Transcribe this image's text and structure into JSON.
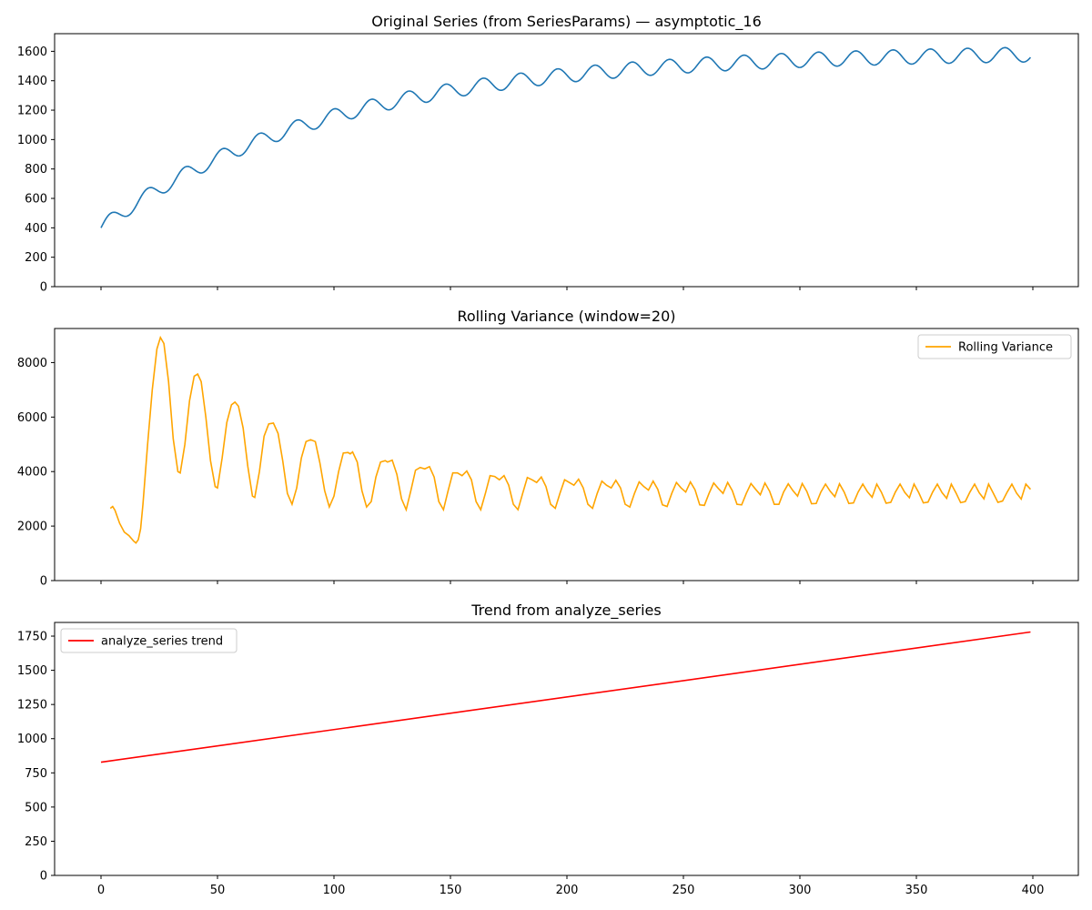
{
  "chart_data": [
    {
      "type": "line",
      "title": "Original Series (from SeriesParams) — asymptotic_16",
      "xlabel": "",
      "ylabel": "",
      "xlim": [
        0,
        400
      ],
      "ylim": [
        0,
        1720
      ],
      "yticks": [
        0,
        200,
        400,
        600,
        800,
        1000,
        1200,
        1400,
        1600
      ],
      "xticks": [
        0,
        50,
        100,
        150,
        200,
        250,
        300,
        350,
        400
      ],
      "x_tick_labels_visible": false,
      "grid": false,
      "legend": null,
      "series": [
        {
          "color": "#1f77b4",
          "x_range": [
            0,
            399
          ],
          "generator": {
            "kind": "asymptotic_sinusoid",
            "base_start": 400,
            "asymptote": 1600,
            "decay_rate": 0.01,
            "amplitude": 50,
            "period": 16,
            "phase": 0
          },
          "sample_points": [
            [
              0,
              400
            ],
            [
              5,
              528
            ],
            [
              11,
              455
            ],
            [
              21,
              700
            ],
            [
              27,
              615
            ],
            [
              37,
              845
            ],
            [
              43,
              750
            ],
            [
              53,
              965
            ],
            [
              59,
              862
            ],
            [
              69,
              1075
            ],
            [
              75,
              960
            ],
            [
              85,
              1160
            ],
            [
              91,
              1045
            ],
            [
              101,
              1240
            ],
            [
              107,
              1115
            ],
            [
              117,
              1300
            ],
            [
              123,
              1175
            ],
            [
              133,
              1360
            ],
            [
              139,
              1225
            ],
            [
              149,
              1405
            ],
            [
              155,
              1270
            ],
            [
              165,
              1445
            ],
            [
              171,
              1305
            ],
            [
              181,
              1480
            ],
            [
              187,
              1340
            ],
            [
              197,
              1510
            ],
            [
              203,
              1368
            ],
            [
              213,
              1535
            ],
            [
              219,
              1390
            ],
            [
              229,
              1555
            ],
            [
              235,
              1410
            ],
            [
              245,
              1575
            ],
            [
              251,
              1428
            ],
            [
              261,
              1592
            ],
            [
              267,
              1445
            ],
            [
              277,
              1605
            ],
            [
              283,
              1458
            ],
            [
              293,
              1617
            ],
            [
              299,
              1468
            ],
            [
              309,
              1627
            ],
            [
              315,
              1478
            ],
            [
              325,
              1633
            ],
            [
              331,
              1486
            ],
            [
              341,
              1640
            ],
            [
              347,
              1490
            ],
            [
              357,
              1645
            ],
            [
              363,
              1495
            ],
            [
              373,
              1650
            ],
            [
              379,
              1500
            ],
            [
              389,
              1655
            ],
            [
              395,
              1502
            ],
            [
              399,
              1545
            ]
          ]
        }
      ]
    },
    {
      "type": "line",
      "title": "Rolling Variance (window=20)",
      "xlabel": "",
      "ylabel": "",
      "xlim": [
        0,
        400
      ],
      "ylim": [
        0,
        9250
      ],
      "yticks": [
        0,
        2000,
        4000,
        6000,
        8000
      ],
      "xticks": [
        0,
        50,
        100,
        150,
        200,
        250,
        300,
        350,
        400
      ],
      "x_tick_labels_visible": false,
      "grid": false,
      "legend": "top-right",
      "series": [
        {
          "name": "Rolling Variance",
          "color": "#ffa500",
          "points": [
            [
              4,
              2650
            ],
            [
              5,
              2720
            ],
            [
              6,
              2580
            ],
            [
              8,
              2100
            ],
            [
              10,
              1780
            ],
            [
              12,
              1650
            ],
            [
              14,
              1450
            ],
            [
              15,
              1380
            ],
            [
              16,
              1500
            ],
            [
              17,
              1900
            ],
            [
              18,
              2800
            ],
            [
              20,
              5000
            ],
            [
              22,
              7000
            ],
            [
              24,
              8500
            ],
            [
              25.5,
              8920
            ],
            [
              27,
              8700
            ],
            [
              29,
              7300
            ],
            [
              31,
              5200
            ],
            [
              33,
              4000
            ],
            [
              34,
              3950
            ],
            [
              36,
              5000
            ],
            [
              38,
              6600
            ],
            [
              40,
              7500
            ],
            [
              41.5,
              7580
            ],
            [
              43,
              7300
            ],
            [
              45,
              6000
            ],
            [
              47,
              4400
            ],
            [
              49,
              3450
            ],
            [
              50,
              3400
            ],
            [
              52,
              4500
            ],
            [
              54,
              5800
            ],
            [
              56,
              6450
            ],
            [
              57.5,
              6550
            ],
            [
              59,
              6400
            ],
            [
              61,
              5600
            ],
            [
              63,
              4200
            ],
            [
              65,
              3100
            ],
            [
              66,
              3050
            ],
            [
              68,
              4000
            ],
            [
              70,
              5300
            ],
            [
              72,
              5750
            ],
            [
              74,
              5780
            ],
            [
              76,
              5400
            ],
            [
              78,
              4400
            ],
            [
              80,
              3200
            ],
            [
              82,
              2800
            ],
            [
              84,
              3400
            ],
            [
              86,
              4500
            ],
            [
              88,
              5100
            ],
            [
              90,
              5170
            ],
            [
              92,
              5100
            ],
            [
              94,
              4300
            ],
            [
              96,
              3300
            ],
            [
              98,
              2700
            ],
            [
              100,
              3100
            ],
            [
              102,
              4000
            ],
            [
              104,
              4680
            ],
            [
              106,
              4700
            ],
            [
              107,
              4650
            ],
            [
              108,
              4720
            ],
            [
              110,
              4350
            ],
            [
              112,
              3300
            ],
            [
              114,
              2700
            ],
            [
              116,
              2900
            ],
            [
              118,
              3800
            ],
            [
              120,
              4350
            ],
            [
              122,
              4400
            ],
            [
              123,
              4350
            ],
            [
              125,
              4420
            ],
            [
              127,
              3900
            ],
            [
              129,
              3000
            ],
            [
              131,
              2600
            ],
            [
              133,
              3300
            ],
            [
              135,
              4050
            ],
            [
              137,
              4150
            ],
            [
              139,
              4100
            ],
            [
              141,
              4180
            ],
            [
              143,
              3800
            ],
            [
              145,
              2900
            ],
            [
              147,
              2600
            ],
            [
              149,
              3300
            ],
            [
              151,
              3950
            ],
            [
              153,
              3950
            ],
            [
              155,
              3850
            ],
            [
              157,
              4020
            ],
            [
              159,
              3700
            ],
            [
              161,
              2900
            ],
            [
              163,
              2600
            ],
            [
              165,
              3200
            ],
            [
              167,
              3850
            ],
            [
              169,
              3820
            ],
            [
              171,
              3700
            ],
            [
              173,
              3850
            ],
            [
              175,
              3500
            ],
            [
              177,
              2800
            ],
            [
              179,
              2600
            ],
            [
              181,
              3200
            ],
            [
              183,
              3780
            ],
            [
              185,
              3700
            ],
            [
              187,
              3600
            ],
            [
              189,
              3800
            ],
            [
              191,
              3450
            ],
            [
              193,
              2800
            ],
            [
              195,
              2650
            ],
            [
              197,
              3200
            ],
            [
              199,
              3700
            ],
            [
              201,
              3600
            ],
            [
              203,
              3500
            ],
            [
              205,
              3720
            ],
            [
              207,
              3400
            ],
            [
              209,
              2800
            ],
            [
              211,
              2650
            ],
            [
              213,
              3200
            ],
            [
              215,
              3650
            ],
            [
              217,
              3500
            ],
            [
              219,
              3400
            ],
            [
              221,
              3680
            ],
            [
              223,
              3400
            ],
            [
              225,
              2800
            ],
            [
              227,
              2700
            ],
            [
              229,
              3200
            ],
            [
              231,
              3620
            ],
            [
              233,
              3450
            ],
            [
              235,
              3320
            ],
            [
              237,
              3650
            ],
            [
              239,
              3350
            ],
            [
              241,
              2780
            ],
            [
              243,
              2720
            ],
            [
              245,
              3200
            ],
            [
              247,
              3600
            ],
            [
              249,
              3400
            ],
            [
              251,
              3250
            ],
            [
              253,
              3620
            ],
            [
              255,
              3330
            ],
            [
              257,
              2780
            ],
            [
              259,
              2760
            ],
            [
              261,
              3200
            ],
            [
              263,
              3580
            ],
            [
              265,
              3380
            ],
            [
              267,
              3200
            ],
            [
              269,
              3600
            ],
            [
              271,
              3300
            ],
            [
              273,
              2800
            ],
            [
              275,
              2780
            ],
            [
              277,
              3200
            ],
            [
              279,
              3560
            ],
            [
              281,
              3350
            ],
            [
              283,
              3150
            ],
            [
              285,
              3580
            ],
            [
              287,
              3280
            ],
            [
              289,
              2800
            ],
            [
              291,
              2800
            ],
            [
              293,
              3250
            ],
            [
              295,
              3550
            ],
            [
              297,
              3300
            ],
            [
              299,
              3100
            ],
            [
              301,
              3560
            ],
            [
              303,
              3270
            ],
            [
              305,
              2820
            ],
            [
              307,
              2830
            ],
            [
              309,
              3250
            ],
            [
              311,
              3540
            ],
            [
              313,
              3280
            ],
            [
              315,
              3080
            ],
            [
              317,
              3550
            ],
            [
              319,
              3250
            ],
            [
              321,
              2830
            ],
            [
              323,
              2850
            ],
            [
              325,
              3250
            ],
            [
              327,
              3540
            ],
            [
              329,
              3260
            ],
            [
              331,
              3060
            ],
            [
              333,
              3540
            ],
            [
              335,
              3240
            ],
            [
              337,
              2840
            ],
            [
              339,
              2870
            ],
            [
              341,
              3250
            ],
            [
              343,
              3540
            ],
            [
              345,
              3240
            ],
            [
              347,
              3040
            ],
            [
              349,
              3540
            ],
            [
              351,
              3230
            ],
            [
              353,
              2850
            ],
            [
              355,
              2880
            ],
            [
              357,
              3250
            ],
            [
              359,
              3540
            ],
            [
              361,
              3230
            ],
            [
              363,
              3020
            ],
            [
              365,
              3540
            ],
            [
              367,
              3220
            ],
            [
              369,
              2860
            ],
            [
              371,
              2900
            ],
            [
              373,
              3250
            ],
            [
              375,
              3540
            ],
            [
              377,
              3220
            ],
            [
              379,
              3000
            ],
            [
              381,
              3540
            ],
            [
              383,
              3210
            ],
            [
              385,
              2870
            ],
            [
              387,
              2920
            ],
            [
              389,
              3250
            ],
            [
              391,
              3540
            ],
            [
              393,
              3210
            ],
            [
              395,
              2990
            ],
            [
              397,
              3540
            ],
            [
              399,
              3350
            ]
          ]
        }
      ]
    },
    {
      "type": "line",
      "title": "Trend from analyze_series",
      "xlabel": "",
      "ylabel": "",
      "xlim": [
        0,
        400
      ],
      "ylim": [
        0,
        1850
      ],
      "yticks": [
        0,
        250,
        500,
        750,
        1000,
        1250,
        1500,
        1750
      ],
      "xticks": [
        0,
        50,
        100,
        150,
        200,
        250,
        300,
        350,
        400
      ],
      "x_tick_labels_visible": true,
      "grid": false,
      "legend": "top-left",
      "series": [
        {
          "name": "analyze_series trend",
          "color": "#ff0000",
          "points": [
            [
              0,
              828
            ],
            [
              399,
              1780
            ]
          ]
        }
      ]
    }
  ]
}
